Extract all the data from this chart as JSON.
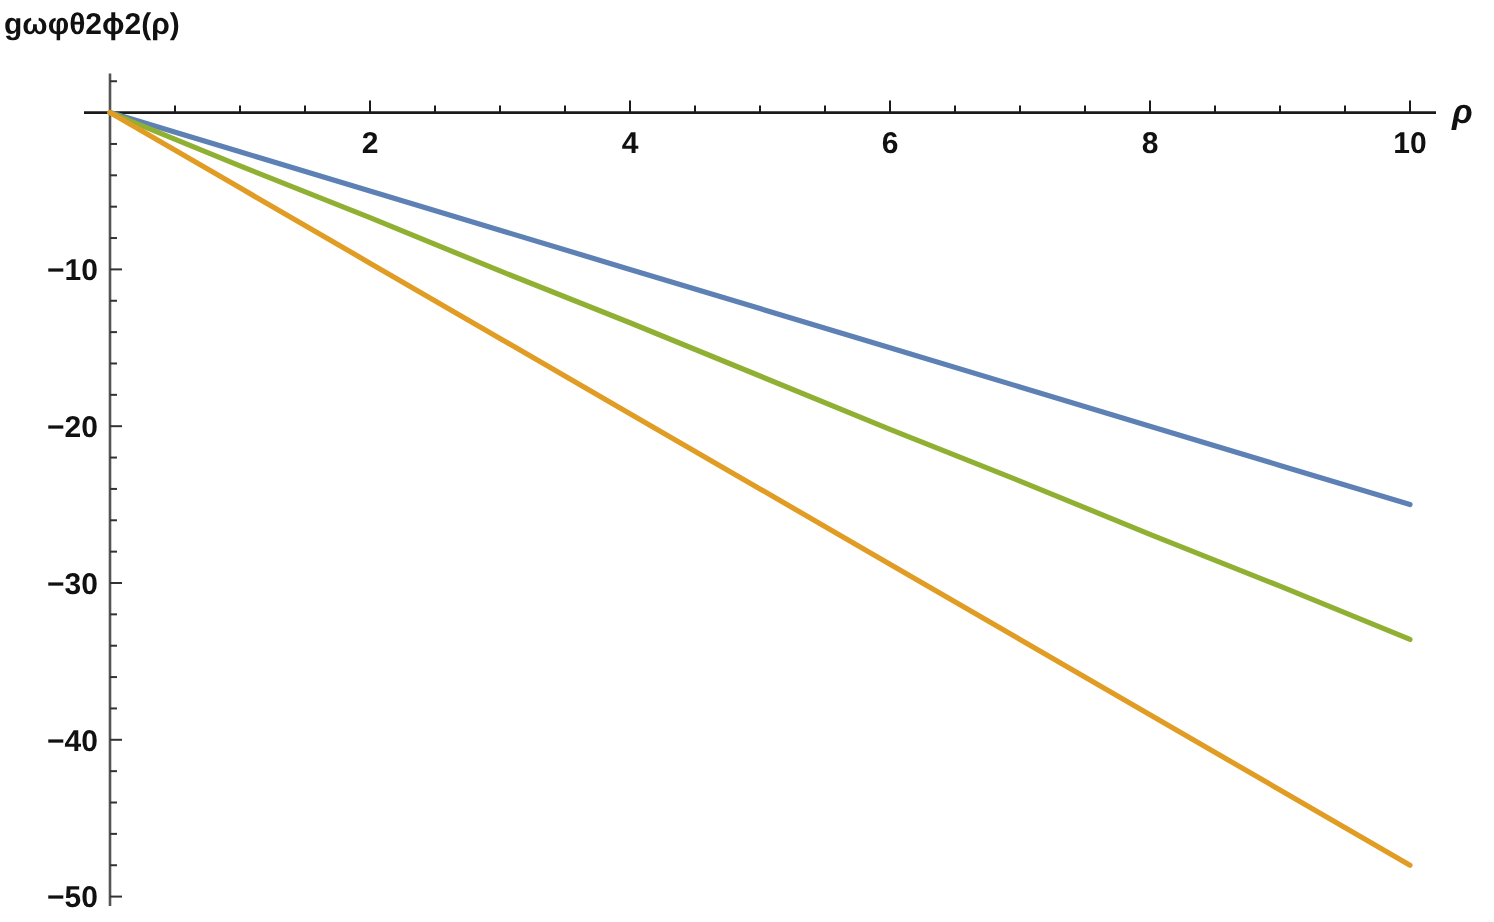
{
  "chart_data": {
    "type": "line",
    "xlabel": "ρ",
    "ylabel": "gωφθ2ϕ2(ρ)",
    "x": [
      0,
      1,
      2,
      3,
      4,
      5,
      6,
      7,
      8,
      9,
      10
    ],
    "series": [
      {
        "color": "#5e81b5",
        "values": [
          0,
          -2.5,
          -5,
          -7.5,
          -10,
          -12.5,
          -15,
          -17.5,
          -20,
          -22.5,
          -25
        ]
      },
      {
        "color": "#8fb032",
        "values": [
          0,
          -3.4,
          -6.7,
          -10.1,
          -13.4,
          -16.8,
          -20.2,
          -23.5,
          -26.9,
          -30.2,
          -33.6
        ]
      },
      {
        "color": "#e19c24",
        "values": [
          0,
          -4.8,
          -9.6,
          -14.4,
          -19.2,
          -24,
          -28.8,
          -33.6,
          -38.4,
          -43.2,
          -48
        ]
      }
    ],
    "xlim": [
      -0.2,
      10.2
    ],
    "ylim": [
      -50.6,
      2.5
    ],
    "xticks": [
      {
        "value": 0.5,
        "label": null
      },
      {
        "value": 1,
        "label": null
      },
      {
        "value": 1.5,
        "label": null
      },
      2,
      {
        "value": 2.5,
        "label": null
      },
      {
        "value": 3,
        "label": null
      },
      {
        "value": 3.5,
        "label": null
      },
      4,
      {
        "value": 4.5,
        "label": null
      },
      {
        "value": 5,
        "label": null
      },
      {
        "value": 5.5,
        "label": null
      },
      6,
      {
        "value": 6.5,
        "label": null
      },
      {
        "value": 7,
        "label": null
      },
      {
        "value": 7.5,
        "label": null
      },
      8,
      {
        "value": 8.5,
        "label": null
      },
      {
        "value": 9,
        "label": null
      },
      {
        "value": 9.5,
        "label": null
      },
      10
    ],
    "yticks": [
      {
        "value": 2,
        "label": null
      },
      {
        "value": -2,
        "label": null
      },
      {
        "value": -4,
        "label": null
      },
      {
        "value": -6,
        "label": null
      },
      {
        "value": -8,
        "label": null
      },
      {
        "value": -10,
        "label": "−10"
      },
      {
        "value": -12,
        "label": null
      },
      {
        "value": -14,
        "label": null
      },
      {
        "value": -16,
        "label": null
      },
      {
        "value": -18,
        "label": null
      },
      {
        "value": -20,
        "label": "−20"
      },
      {
        "value": -22,
        "label": null
      },
      {
        "value": -24,
        "label": null
      },
      {
        "value": -26,
        "label": null
      },
      {
        "value": -28,
        "label": null
      },
      {
        "value": -30,
        "label": "−30"
      },
      {
        "value": -32,
        "label": null
      },
      {
        "value": -34,
        "label": null
      },
      {
        "value": -36,
        "label": null
      },
      {
        "value": -38,
        "label": null
      },
      {
        "value": -40,
        "label": "−40"
      },
      {
        "value": -42,
        "label": null
      },
      {
        "value": -44,
        "label": null
      },
      {
        "value": -46,
        "label": null
      },
      {
        "value": -48,
        "label": null
      },
      {
        "value": -50,
        "label": "−50"
      }
    ],
    "grid": false,
    "marker": "none",
    "line_style": "solid"
  }
}
